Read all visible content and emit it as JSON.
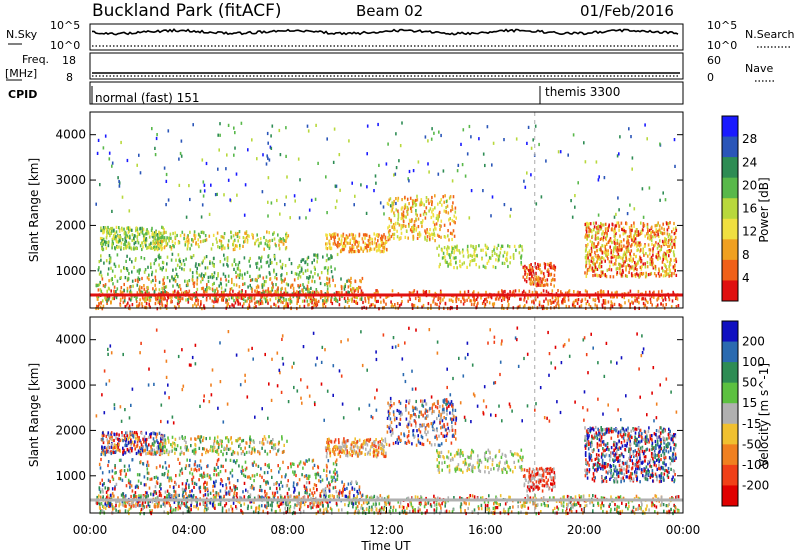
{
  "header": {
    "station": "Buckland Park (fitACF)",
    "beam": "Beam 02",
    "date": "01/Feb/2016"
  },
  "noise_panel": {
    "left_label": "N.Sky",
    "right_label": "N.Search",
    "left_ticks": [
      "10^5",
      "10^0"
    ],
    "right_ticks": [
      "10^5",
      "10^0"
    ]
  },
  "freq_panel": {
    "left_label_line1": "Freq.",
    "left_label_line2": "[MHz]",
    "right_label": "Nave",
    "left_ticks": [
      "18",
      "8"
    ],
    "right_ticks": [
      "60",
      "0"
    ]
  },
  "cpid_panel": {
    "label": "CPID",
    "modes": [
      {
        "name": "normal (fast) 151",
        "start_hour": 0
      },
      {
        "name": "themis 3300",
        "start_hour": 18
      }
    ]
  },
  "chart_data": [
    {
      "type": "heatmap",
      "name": "power",
      "ylabel": "Slant Range [km]",
      "ylim": [
        180,
        4500
      ],
      "xlim_hours": [
        0,
        24
      ],
      "y_ticks": [
        "4000",
        "3000",
        "2000",
        "1000"
      ],
      "colorbar_label": "Power [dB]",
      "colorbar_ticks": [
        "28",
        "24",
        "20",
        "16",
        "12",
        "8",
        "4"
      ],
      "colors": [
        "#1a1aff",
        "#2a55b8",
        "#2e8c54",
        "#58b84a",
        "#b8d83c",
        "#f0e040",
        "#f0a020",
        "#f06018",
        "#e01010"
      ]
    },
    {
      "type": "heatmap",
      "name": "velocity",
      "ylabel": "Slant Range [km]",
      "ylim": [
        180,
        4500
      ],
      "xlim_hours": [
        0,
        24
      ],
      "y_ticks": [
        "4000",
        "3000",
        "2000",
        "1000"
      ],
      "x_ticks": [
        "00:00",
        "04:00",
        "08:00",
        "12:00",
        "16:00",
        "20:00",
        "00:00"
      ],
      "xlabel": "Time UT",
      "colorbar_label": "Velocity [m s^-1]",
      "colorbar_ticks": [
        "200",
        "100",
        "50",
        "15",
        "-15",
        "-50",
        "-100",
        "-200"
      ],
      "colors": [
        "#1010c0",
        "#2a6ab0",
        "#2e8c54",
        "#5cc040",
        "#b0b0b0",
        "#f0c030",
        "#f08020",
        "#f04018",
        "#e00000"
      ]
    }
  ]
}
